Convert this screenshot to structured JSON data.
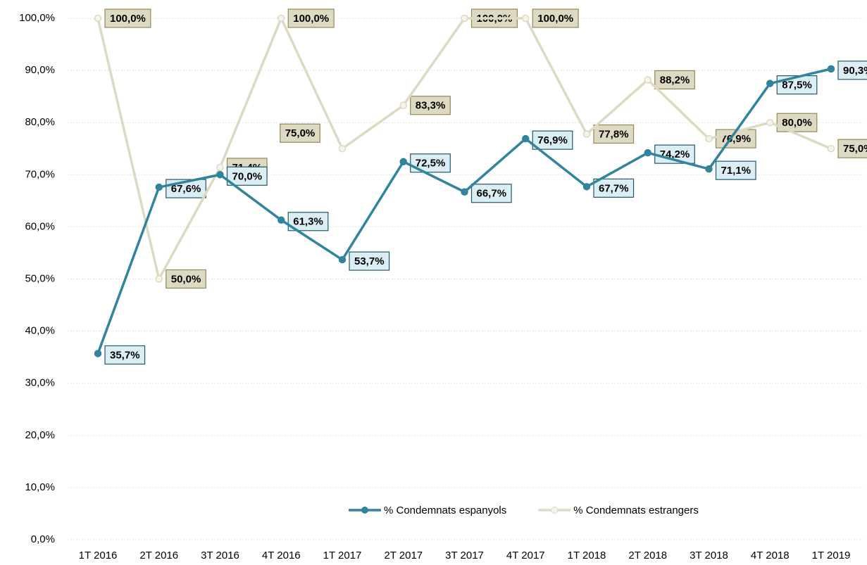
{
  "chart_data": {
    "type": "line",
    "categories": [
      "1T 2016",
      "2T 2016",
      "3T 2016",
      "4T 2016",
      "1T 2017",
      "2T 2017",
      "3T 2017",
      "4T 2017",
      "1T 2018",
      "2T 2018",
      "3T 2018",
      "4T 2018",
      "1T 2019"
    ],
    "series": [
      {
        "name": "% Condemnats espanyols",
        "color": "#31849b",
        "values": [
          35.7,
          67.6,
          70.0,
          61.3,
          53.7,
          72.5,
          66.7,
          76.9,
          67.7,
          74.2,
          71.1,
          87.5,
          90.3
        ],
        "value_labels": [
          "35,7%",
          "67,6%",
          "70,0%",
          "61,3%",
          "53,7%",
          "72,5%",
          "66,7%",
          "76,9%",
          "67,7%",
          "74,2%",
          "71,1%",
          "87,5%",
          "90,3%"
        ]
      },
      {
        "name": "% Condemnats estrangers",
        "color": "#ddd9c3",
        "values": [
          100.0,
          50.0,
          71.4,
          100.0,
          75.0,
          83.3,
          100.0,
          100.0,
          77.8,
          88.2,
          76.9,
          80.0,
          75.0
        ],
        "value_labels": [
          "100,0%",
          "50,0%",
          "71,4%",
          "100,0%",
          "75,0%",
          "83,3%",
          "100,0%",
          "100,0%",
          "77,8%",
          "88,2%",
          "76,9%",
          "80,0%",
          "75,0%"
        ]
      }
    ],
    "ylim": [
      0,
      100
    ],
    "yticks": [
      {
        "value": 0,
        "label": "0,0%"
      },
      {
        "value": 10,
        "label": "10,0%"
      },
      {
        "value": 20,
        "label": "20,0%"
      },
      {
        "value": 30,
        "label": "30,0%"
      },
      {
        "value": 40,
        "label": "40,0%"
      },
      {
        "value": 50,
        "label": "50,0%"
      },
      {
        "value": 60,
        "label": "60,0%"
      },
      {
        "value": 70,
        "label": "70,0%"
      },
      {
        "value": 80,
        "label": "80,0%"
      },
      {
        "value": 90,
        "label": "90,0%"
      },
      {
        "value": 100,
        "label": "100,0%"
      }
    ],
    "grid": true,
    "legend": "lower right"
  }
}
